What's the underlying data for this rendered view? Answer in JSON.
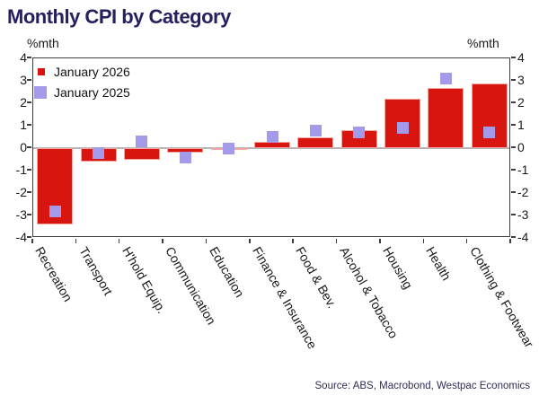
{
  "title": "Monthly CPI by Category",
  "axis_unit_left": "%mth",
  "axis_unit_right": "%mth",
  "source": "Source: ABS, Macrobond, Westpac Economics",
  "colors": {
    "bar": "#d8160f",
    "bar_edge": "#f4a7a2",
    "marker": "#a39ae9",
    "title": "#26215e",
    "source_text": "#2e2d55",
    "axis_text": "#1a1a1a",
    "spine": "#3f3f3f",
    "zero_line": "#b5b5b5"
  },
  "chart_data": {
    "type": "bar",
    "title": "Monthly CPI by Category",
    "ylabel": "%mth",
    "ylim": [
      -4,
      4
    ],
    "yticks": [
      4,
      3,
      2,
      1,
      0,
      -1,
      -2,
      -3,
      -4
    ],
    "grid": false,
    "legend_position": "upper-left-inside",
    "categories": [
      "Recreation",
      "Transport",
      "H'hold Equip.",
      "Communication",
      "Education",
      "Finance & Insurance",
      "Food & Bev.",
      "Alcohol & Tobacco",
      "Housing",
      "Health",
      "Clothing & Footwear"
    ],
    "series": [
      {
        "name": "January 2026",
        "type": "bar",
        "color": "#d8160f",
        "values": [
          -3.4,
          -0.6,
          -0.5,
          -0.2,
          -0.05,
          0.3,
          0.5,
          0.8,
          2.2,
          2.7,
          2.9
        ]
      },
      {
        "name": "January 2025",
        "type": "scatter-square",
        "color": "#a39ae9",
        "values": [
          -2.8,
          -0.2,
          0.3,
          -0.4,
          0.0,
          0.5,
          0.8,
          0.7,
          0.9,
          3.1,
          0.7
        ]
      }
    ],
    "source": "Source: ABS, Macrobond, Westpac Economics"
  }
}
